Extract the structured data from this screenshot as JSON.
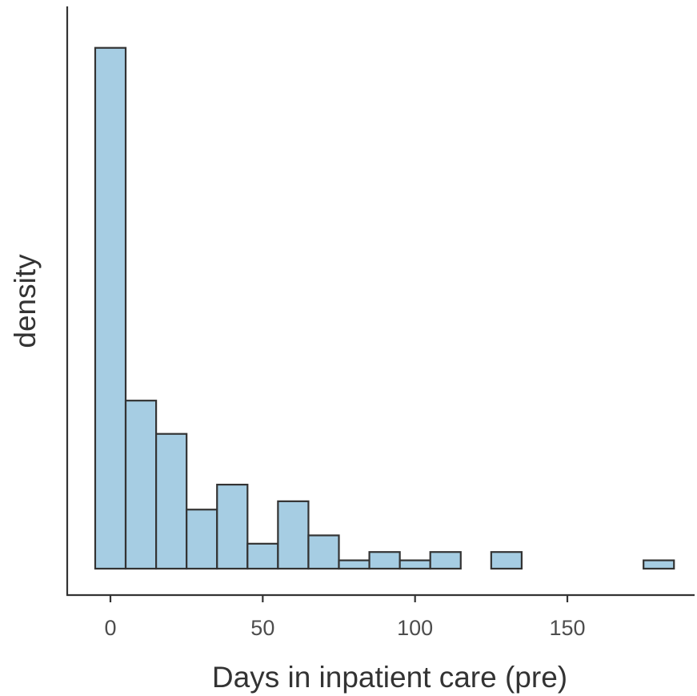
{
  "chart_data": {
    "type": "bar",
    "title": "",
    "xlabel": "Days in inpatient care (pre)",
    "ylabel": "density",
    "bin_width": 10,
    "x_ticks": [
      0,
      50,
      100,
      150
    ],
    "x_tick_labels": [
      "0",
      "50",
      "100",
      "150"
    ],
    "xlim": [
      -5,
      185
    ],
    "y_tick_labels_shown": false,
    "ylim": [
      0,
      0.0645
    ],
    "bins": [
      {
        "start": -5,
        "end": 5,
        "density": 0.0626
      },
      {
        "start": 5,
        "end": 15,
        "density": 0.0202
      },
      {
        "start": 15,
        "end": 25,
        "density": 0.0162
      },
      {
        "start": 25,
        "end": 35,
        "density": 0.0071
      },
      {
        "start": 35,
        "end": 45,
        "density": 0.0101
      },
      {
        "start": 45,
        "end": 55,
        "density": 0.003
      },
      {
        "start": 55,
        "end": 65,
        "density": 0.0081
      },
      {
        "start": 65,
        "end": 75,
        "density": 0.004
      },
      {
        "start": 75,
        "end": 85,
        "density": 0.001
      },
      {
        "start": 85,
        "end": 95,
        "density": 0.002
      },
      {
        "start": 95,
        "end": 105,
        "density": 0.001
      },
      {
        "start": 105,
        "end": 115,
        "density": 0.002
      },
      {
        "start": 115,
        "end": 125,
        "density": 0.0
      },
      {
        "start": 125,
        "end": 135,
        "density": 0.002
      },
      {
        "start": 135,
        "end": 145,
        "density": 0.0
      },
      {
        "start": 145,
        "end": 155,
        "density": 0.0
      },
      {
        "start": 155,
        "end": 165,
        "density": 0.0
      },
      {
        "start": 165,
        "end": 175,
        "density": 0.0
      },
      {
        "start": 175,
        "end": 185,
        "density": 0.001
      }
    ],
    "bar_fill": "#a6cde3",
    "bar_stroke": "#333333",
    "grid": false,
    "legend": "none"
  }
}
